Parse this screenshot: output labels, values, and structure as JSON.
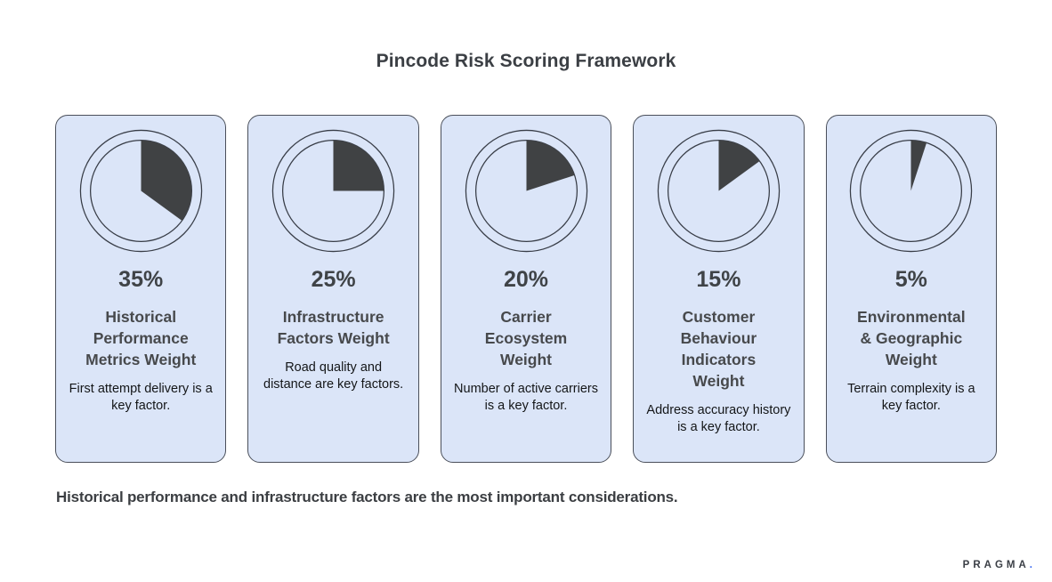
{
  "page": {
    "title": "Pincode Risk Scoring Framework",
    "footnote": "Historical performance and infrastructure factors are the most important considerations."
  },
  "brand": {
    "name": "PRAGMA",
    "dot": ".",
    "dot_color": "#3b6af2"
  },
  "colors": {
    "card_bg": "#dbe5f8",
    "card_border": "#4a4f5a",
    "ring_stroke": "#383d47",
    "slice_fill": "#404244"
  },
  "chart_data": {
    "type": "pie",
    "title": "Pincode Risk Scoring Framework",
    "categories": [
      "Historical Performance Metrics Weight",
      "Infrastructure Factors Weight",
      "Carrier Ecosystem Weight",
      "Customer Behaviour Indicators Weight",
      "Environmental & Geographic Weight"
    ],
    "values": [
      35,
      25,
      20,
      15,
      5
    ],
    "unit": "%",
    "note": "Each card shows a single-slice pie starting at 12 o'clock, clockwise"
  },
  "cards": [
    {
      "value": 35,
      "percent": "35%",
      "title": "Historical\nPerformance\nMetrics Weight",
      "description": "First attempt delivery is a key factor."
    },
    {
      "value": 25,
      "percent": "25%",
      "title": "Infrastructure\nFactors Weight",
      "description": "Road quality and distance are key factors."
    },
    {
      "value": 20,
      "percent": "20%",
      "title": "Carrier\nEcosystem\nWeight",
      "description": "Number of active carriers is a key factor."
    },
    {
      "value": 15,
      "percent": "15%",
      "title": "Customer\nBehaviour\nIndicators\nWeight",
      "description": "Address accuracy history is a key factor."
    },
    {
      "value": 5,
      "percent": "5%",
      "title": "Environmental\n& Geographic\nWeight",
      "description": "Terrain complexity is a key factor."
    }
  ]
}
